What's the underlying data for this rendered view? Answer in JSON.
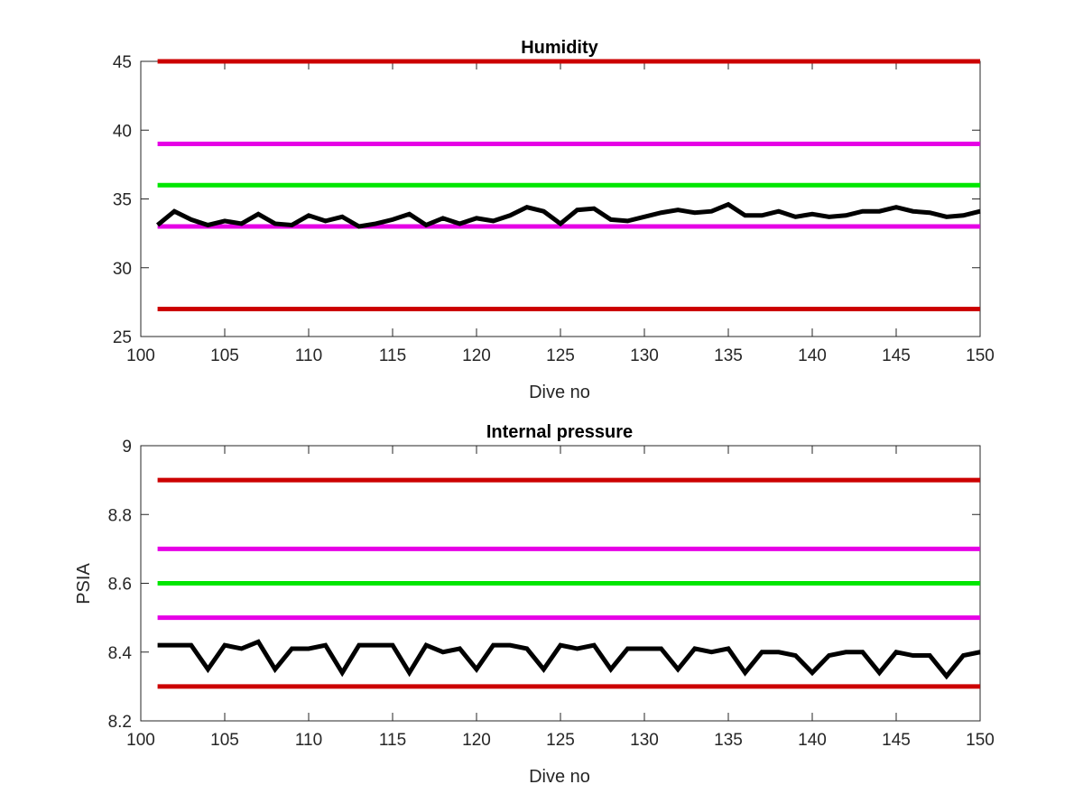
{
  "chart_data": [
    {
      "type": "line",
      "title": "Humidity",
      "xlabel": "Dive no",
      "ylabel": "",
      "xlim": [
        100,
        150
      ],
      "ylim": [
        25,
        45
      ],
      "xticks": [
        100,
        105,
        110,
        115,
        120,
        125,
        130,
        135,
        140,
        145,
        150
      ],
      "yticks": [
        25,
        30,
        35,
        40,
        45
      ],
      "thresholds": [
        {
          "y": 45,
          "color": "#cc0000"
        },
        {
          "y": 39,
          "color": "#e600e6"
        },
        {
          "y": 36,
          "color": "#00e600"
        },
        {
          "y": 33,
          "color": "#e600e6"
        },
        {
          "y": 27,
          "color": "#cc0000"
        }
      ],
      "series": [
        {
          "color": "#000000",
          "x": [
            101,
            102,
            103,
            104,
            105,
            106,
            107,
            108,
            109,
            110,
            111,
            112,
            113,
            114,
            115,
            116,
            117,
            118,
            119,
            120,
            121,
            122,
            123,
            124,
            125,
            126,
            127,
            128,
            129,
            130,
            131,
            132,
            133,
            134,
            135,
            136,
            137,
            138,
            139,
            140,
            141,
            142,
            143,
            144,
            145,
            146,
            147,
            148,
            149,
            150
          ],
          "values": [
            33.1,
            34.1,
            33.5,
            33.1,
            33.4,
            33.2,
            33.9,
            33.2,
            33.1,
            33.8,
            33.4,
            33.7,
            33.0,
            33.2,
            33.5,
            33.9,
            33.1,
            33.6,
            33.2,
            33.6,
            33.4,
            33.8,
            34.4,
            34.1,
            33.2,
            34.2,
            34.3,
            33.5,
            33.4,
            33.7,
            34.0,
            34.2,
            34.0,
            34.1,
            34.6,
            33.8,
            33.8,
            34.1,
            33.7,
            33.9,
            33.7,
            33.8,
            34.1,
            34.1,
            34.4,
            34.1,
            34.0,
            33.7,
            33.8,
            34.1
          ]
        }
      ]
    },
    {
      "type": "line",
      "title": "Internal pressure",
      "xlabel": "Dive no",
      "ylabel": "PSIA",
      "xlim": [
        100,
        150
      ],
      "ylim": [
        8.2,
        9
      ],
      "xticks": [
        100,
        105,
        110,
        115,
        120,
        125,
        130,
        135,
        140,
        145,
        150
      ],
      "yticks": [
        8.2,
        8.4,
        8.6,
        8.8,
        9
      ],
      "thresholds": [
        {
          "y": 8.9,
          "color": "#cc0000"
        },
        {
          "y": 8.7,
          "color": "#e600e6"
        },
        {
          "y": 8.6,
          "color": "#00e600"
        },
        {
          "y": 8.5,
          "color": "#e600e6"
        },
        {
          "y": 8.3,
          "color": "#cc0000"
        }
      ],
      "series": [
        {
          "color": "#000000",
          "x": [
            101,
            102,
            103,
            104,
            105,
            106,
            107,
            108,
            109,
            110,
            111,
            112,
            113,
            114,
            115,
            116,
            117,
            118,
            119,
            120,
            121,
            122,
            123,
            124,
            125,
            126,
            127,
            128,
            129,
            130,
            131,
            132,
            133,
            134,
            135,
            136,
            137,
            138,
            139,
            140,
            141,
            142,
            143,
            144,
            145,
            146,
            147,
            148,
            149,
            150
          ],
          "values": [
            8.42,
            8.42,
            8.42,
            8.35,
            8.42,
            8.41,
            8.43,
            8.35,
            8.41,
            8.41,
            8.42,
            8.34,
            8.42,
            8.42,
            8.42,
            8.34,
            8.42,
            8.4,
            8.41,
            8.35,
            8.42,
            8.42,
            8.41,
            8.35,
            8.42,
            8.41,
            8.42,
            8.35,
            8.41,
            8.41,
            8.41,
            8.35,
            8.41,
            8.4,
            8.41,
            8.34,
            8.4,
            8.4,
            8.39,
            8.34,
            8.39,
            8.4,
            8.4,
            8.34,
            8.4,
            8.39,
            8.39,
            8.33,
            8.39,
            8.4
          ]
        }
      ]
    }
  ]
}
